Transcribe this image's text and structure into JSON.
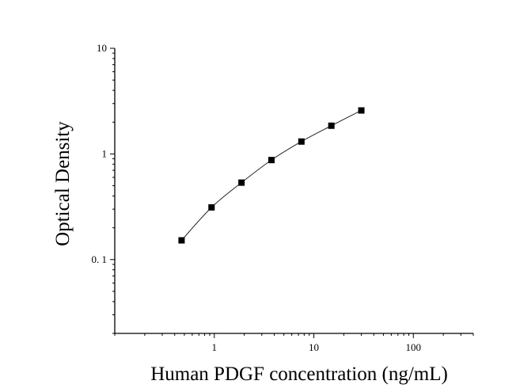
{
  "chart_data": {
    "type": "scatter",
    "title": "",
    "xlabel": "Human PDGF concentration (ng/mL)",
    "ylabel": "Optical Density",
    "xscale": "log",
    "yscale": "log",
    "xlim": [
      0.1,
      400
    ],
    "ylim": [
      0.02,
      10
    ],
    "x_ticks": [
      {
        "value": 1,
        "label": "1"
      },
      {
        "value": 10,
        "label": "10"
      },
      {
        "value": 100,
        "label": "100"
      }
    ],
    "y_ticks": [
      {
        "value": 0.1,
        "label": "0. 1"
      },
      {
        "value": 1,
        "label": "1"
      },
      {
        "value": 10,
        "label": "10"
      }
    ],
    "grid": false,
    "legend": "none",
    "series": [
      {
        "marker": "square",
        "color": "#000000",
        "fit_line": true,
        "x": [
          0.469,
          0.938,
          1.875,
          3.75,
          7.5,
          15,
          30
        ],
        "y": [
          0.152,
          0.312,
          0.535,
          0.875,
          1.31,
          1.85,
          2.58
        ]
      }
    ]
  }
}
